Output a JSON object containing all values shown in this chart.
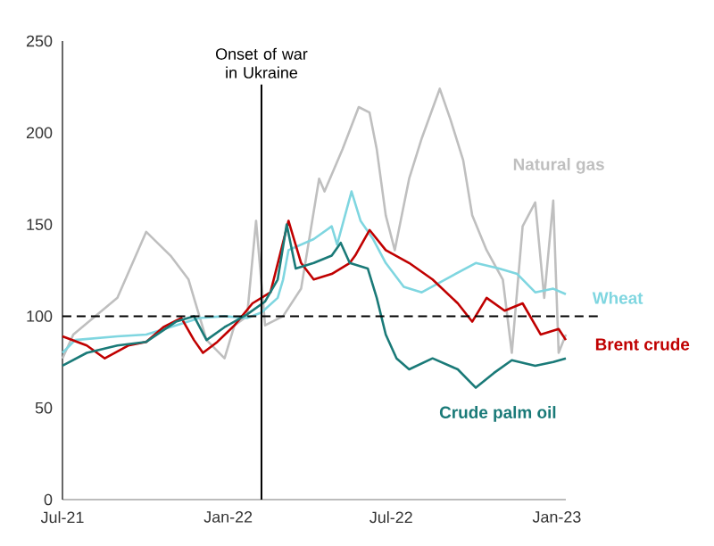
{
  "chart_data": {
    "type": "line",
    "line_style": "solid",
    "xlim": [
      "2021-07-01",
      "2023-01-11"
    ],
    "xticks": [
      {
        "value": "2021-07-01",
        "label": "Jul-21"
      },
      {
        "value": "2022-01-01",
        "label": "Jan-22"
      },
      {
        "value": "2022-07-01",
        "label": "Jul-22"
      },
      {
        "value": "2023-01-01",
        "label": "Jan-23"
      }
    ],
    "ylim": [
      0,
      250
    ],
    "yticks": [
      0,
      50,
      100,
      150,
      200,
      250
    ],
    "series": [
      {
        "name": "Natural gas",
        "color": "#bfbfbf",
        "x": [
          "2021-07-01",
          "2021-07-13",
          "2021-08-31",
          "2021-10-02",
          "2021-10-29",
          "2021-11-18",
          "2021-11-24",
          "2021-12-08",
          "2021-12-28",
          "2022-01-08",
          "2022-01-22",
          "2022-02-01",
          "2022-02-11",
          "2022-03-03",
          "2022-03-23",
          "2022-04-12",
          "2022-04-18",
          "2022-05-08",
          "2022-05-26",
          "2022-06-07",
          "2022-06-15",
          "2022-06-25",
          "2022-07-05",
          "2022-07-21",
          "2022-08-04",
          "2022-08-24",
          "2022-09-05",
          "2022-09-19",
          "2022-09-29",
          "2022-10-15",
          "2022-11-02",
          "2022-11-12",
          "2022-11-24",
          "2022-12-08",
          "2022-12-18",
          "2022-12-28",
          "2023-01-03",
          "2023-01-11"
        ],
        "values": [
          77,
          90,
          110,
          146,
          133,
          120,
          110,
          87,
          77,
          95,
          100,
          152,
          95,
          100,
          115,
          175,
          168,
          191,
          214,
          211,
          191,
          155,
          136,
          175,
          197,
          224,
          207,
          185,
          155,
          136,
          120,
          80,
          149,
          162,
          110,
          163,
          80,
          90
        ]
      },
      {
        "name": "Wheat",
        "color": "#7fd6e0",
        "x": [
          "2021-07-01",
          "2021-07-15",
          "2021-08-31",
          "2021-10-02",
          "2021-11-04",
          "2021-11-30",
          "2021-12-28",
          "2022-01-22",
          "2022-02-07",
          "2022-02-25",
          "2022-03-03",
          "2022-03-09",
          "2022-04-06",
          "2022-04-26",
          "2022-05-02",
          "2022-05-18",
          "2022-05-28",
          "2022-06-11",
          "2022-06-25",
          "2022-07-15",
          "2022-08-04",
          "2022-08-30",
          "2022-10-03",
          "2022-10-29",
          "2022-11-18",
          "2022-12-08",
          "2022-12-28",
          "2023-01-11"
        ],
        "values": [
          80,
          87,
          89,
          90,
          95,
          99,
          100,
          99,
          102,
          110,
          120,
          136,
          142,
          149,
          139,
          168,
          152,
          142,
          129,
          116,
          113,
          120,
          129,
          126,
          123,
          113,
          115,
          112
        ]
      },
      {
        "name": "Brent crude",
        "color": "#c00000",
        "x": [
          "2021-07-01",
          "2021-07-28",
          "2021-08-17",
          "2021-09-12",
          "2021-10-02",
          "2021-10-21",
          "2021-11-10",
          "2021-11-24",
          "2021-12-04",
          "2021-12-20",
          "2022-01-08",
          "2022-01-28",
          "2022-02-17",
          "2022-03-09",
          "2022-03-23",
          "2022-04-06",
          "2022-04-26",
          "2022-05-16",
          "2022-05-22",
          "2022-06-07",
          "2022-06-25",
          "2022-07-21",
          "2022-08-16",
          "2022-09-13",
          "2022-09-29",
          "2022-10-15",
          "2022-11-04",
          "2022-11-24",
          "2022-12-14",
          "2023-01-03",
          "2023-01-11"
        ],
        "values": [
          89,
          84,
          77,
          84,
          86,
          94,
          99,
          87,
          80,
          86,
          95,
          107,
          113,
          152,
          129,
          120,
          123,
          129,
          133,
          147,
          136,
          129,
          120,
          107,
          97,
          110,
          103,
          107,
          90,
          93,
          87
        ]
      },
      {
        "name": "Crude palm oil",
        "color": "#1a7a78",
        "x": [
          "2021-07-01",
          "2021-07-28",
          "2021-08-31",
          "2021-10-02",
          "2021-11-04",
          "2021-11-24",
          "2021-12-08",
          "2021-12-28",
          "2022-01-22",
          "2022-02-11",
          "2022-02-25",
          "2022-03-07",
          "2022-03-17",
          "2022-04-06",
          "2022-04-26",
          "2022-05-06",
          "2022-05-16",
          "2022-06-05",
          "2022-06-15",
          "2022-06-25",
          "2022-07-07",
          "2022-07-21",
          "2022-08-16",
          "2022-09-13",
          "2022-10-03",
          "2022-10-23",
          "2022-11-12",
          "2022-12-08",
          "2022-12-28",
          "2023-01-11"
        ],
        "values": [
          73,
          80,
          84,
          86,
          97,
          100,
          87,
          94,
          101,
          108,
          120,
          150,
          126,
          129,
          133,
          140,
          129,
          126,
          110,
          90,
          77,
          71,
          77,
          71,
          61,
          69,
          76,
          73,
          75,
          77
        ]
      }
    ],
    "ref_lines": [
      {
        "axis": "x",
        "value": "2022-02-07",
        "label": "Onset of war in Ukraine",
        "color": "#000000",
        "line_style": "solid"
      },
      {
        "axis": "y",
        "value": 100,
        "color": "#000000",
        "line_style": "dashed"
      }
    ]
  }
}
